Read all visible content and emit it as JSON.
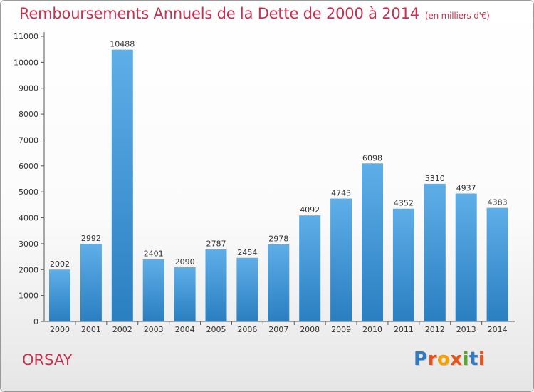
{
  "title": "Remboursements Annuels de la Dette de 2000 à 2014",
  "unit": "(en milliers d'€)",
  "town": "ORSAY",
  "logo": {
    "text": "Proxiti",
    "colors": [
      "#2e7bc4",
      "#e8531c",
      "#f2a100",
      "#e8531c",
      "#5aa832",
      "#2e7bc4",
      "#e8531c"
    ]
  },
  "chart_data": {
    "type": "bar",
    "title": "Remboursements Annuels de la Dette de 2000 à 2014",
    "subtitle": "(en milliers d'€)",
    "categories": [
      "2000",
      "2001",
      "2002",
      "2003",
      "2004",
      "2005",
      "2006",
      "2007",
      "2008",
      "2009",
      "2010",
      "2011",
      "2012",
      "2013",
      "2014"
    ],
    "values": [
      2002,
      2992,
      10488,
      2401,
      2090,
      2787,
      2454,
      2978,
      4092,
      4743,
      6098,
      4352,
      5310,
      4937,
      4383
    ],
    "ylim": [
      0,
      11000
    ],
    "yticks": [
      0,
      1000,
      2000,
      3000,
      4000,
      5000,
      6000,
      7000,
      8000,
      9000,
      10000,
      11000
    ],
    "grid": false,
    "colors": {
      "bar_top": "#5eaee8",
      "bar_bottom": "#2a7fc1"
    }
  }
}
